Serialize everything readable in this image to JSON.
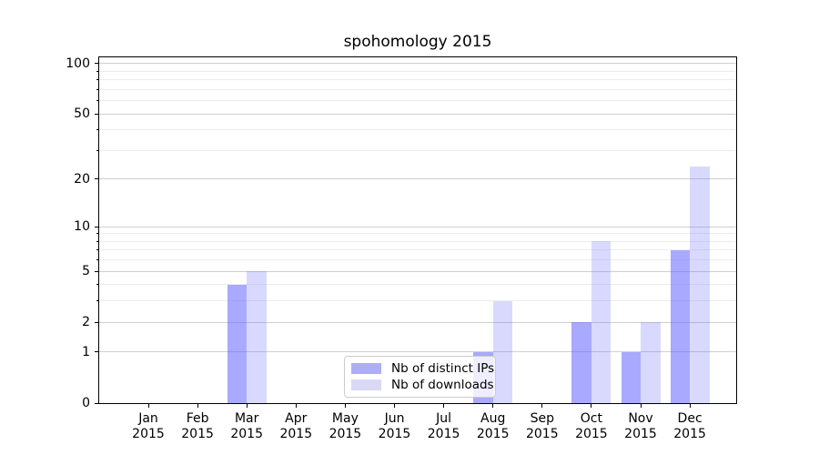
{
  "chart_data": {
    "type": "bar",
    "title": "spohomology 2015",
    "categories": [
      "Jan",
      "Feb",
      "Mar",
      "Apr",
      "May",
      "Jun",
      "Jul",
      "Aug",
      "Sep",
      "Oct",
      "Nov",
      "Dec"
    ],
    "category_year": "2015",
    "series": [
      {
        "name": "Nb of distinct IPs",
        "fill": "rgba(102,102,255,0.56)",
        "swatch_color": "#aeaef4",
        "values": [
          0,
          0,
          4,
          0,
          0,
          0,
          0,
          1,
          0,
          2,
          1,
          7
        ]
      },
      {
        "name": "Nb of downloads",
        "fill": "rgba(102,102,255,0.25)",
        "swatch_color": "#d9d9f6",
        "values": [
          0,
          0,
          5,
          0,
          0,
          0,
          0,
          3,
          0,
          8,
          2,
          24
        ]
      }
    ],
    "xlabel": "",
    "ylabel": "",
    "y_scale": "log1p",
    "y_ticks": [
      0,
      1,
      2,
      5,
      10,
      20,
      50,
      100
    ],
    "y_minor_ticks": [
      3,
      4,
      6,
      7,
      8,
      9,
      30,
      40,
      60,
      70,
      80,
      90
    ],
    "ylim": [
      0,
      112
    ],
    "grid": "horizontal",
    "legend_position": "lower center"
  }
}
